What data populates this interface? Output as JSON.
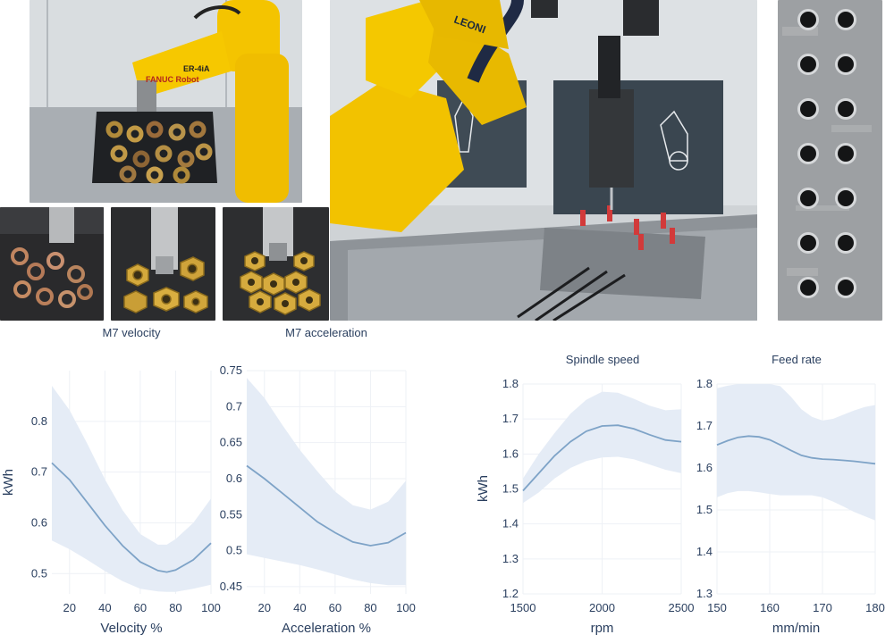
{
  "photos": {
    "robot_pick_and_place": {
      "brand_text": "FANUC Robot",
      "model_text": "ER-4iA"
    },
    "pick_sequence": [
      "brass-rings",
      "brass-nuts-mixed",
      "brass-nuts-hex"
    ],
    "drilling_cell": {
      "brand_text": "LEONI"
    },
    "drilled_plate": {
      "hole_count": 14
    }
  },
  "colors": {
    "line": "#7ea3c7",
    "band": "#e4ebf6",
    "grid": "#eef1f6",
    "text": "#2a3f5f"
  },
  "chart_data": [
    {
      "type": "line",
      "title": "M7 velocity",
      "xlabel": "Velocity %",
      "ylabel": "kWh",
      "xlim": [
        10,
        100
      ],
      "ylim": [
        0.46,
        0.9
      ],
      "xticks": [
        20,
        40,
        60,
        80,
        100
      ],
      "yticks": [
        0.5,
        0.6,
        0.7,
        0.8
      ],
      "x": [
        10,
        20,
        30,
        40,
        50,
        60,
        70,
        75,
        80,
        90,
        100
      ],
      "y": [
        0.718,
        0.685,
        0.64,
        0.595,
        0.555,
        0.523,
        0.506,
        0.503,
        0.507,
        0.527,
        0.56
      ],
      "y_lower": [
        0.565,
        0.548,
        0.527,
        0.505,
        0.485,
        0.47,
        0.465,
        0.464,
        0.464,
        0.47,
        0.478
      ],
      "y_upper": [
        0.87,
        0.822,
        0.756,
        0.686,
        0.625,
        0.578,
        0.557,
        0.557,
        0.568,
        0.6,
        0.648
      ]
    },
    {
      "type": "line",
      "title": "M7 acceleration",
      "xlabel": "Acceleration %",
      "ylabel": "",
      "xlim": [
        10,
        100
      ],
      "ylim": [
        0.44,
        0.75
      ],
      "xticks": [
        20,
        40,
        60,
        80,
        100
      ],
      "yticks": [
        0.45,
        0.5,
        0.55,
        0.6,
        0.65,
        0.7,
        0.75
      ],
      "x": [
        10,
        20,
        30,
        40,
        50,
        60,
        70,
        80,
        90,
        100
      ],
      "y": [
        0.618,
        0.6,
        0.58,
        0.56,
        0.54,
        0.525,
        0.512,
        0.507,
        0.511,
        0.525
      ],
      "y_lower": [
        0.495,
        0.49,
        0.485,
        0.48,
        0.474,
        0.467,
        0.46,
        0.455,
        0.452,
        0.452
      ],
      "y_upper": [
        0.74,
        0.712,
        0.675,
        0.64,
        0.61,
        0.582,
        0.563,
        0.557,
        0.568,
        0.597
      ]
    },
    {
      "type": "line",
      "title": "Spindle speed",
      "xlabel": "rpm",
      "ylabel": "kWh",
      "xlim": [
        1500,
        2500
      ],
      "ylim": [
        1.2,
        1.8
      ],
      "xticks": [
        1500,
        2000,
        2500
      ],
      "yticks": [
        1.2,
        1.3,
        1.4,
        1.5,
        1.6,
        1.7,
        1.8
      ],
      "x": [
        1500,
        1600,
        1700,
        1800,
        1900,
        2000,
        2100,
        2200,
        2300,
        2400,
        2500
      ],
      "y": [
        1.495,
        1.545,
        1.595,
        1.635,
        1.665,
        1.68,
        1.682,
        1.672,
        1.655,
        1.64,
        1.635
      ],
      "y_lower": [
        1.46,
        1.49,
        1.53,
        1.56,
        1.58,
        1.59,
        1.592,
        1.585,
        1.57,
        1.555,
        1.545
      ],
      "y_upper": [
        1.53,
        1.6,
        1.66,
        1.715,
        1.755,
        1.778,
        1.775,
        1.758,
        1.738,
        1.725,
        1.728
      ]
    },
    {
      "type": "line",
      "title": "Feed rate",
      "xlabel": "mm/min",
      "ylabel": "",
      "xlim": [
        150,
        180
      ],
      "ylim": [
        1.3,
        1.8
      ],
      "xticks": [
        150,
        160,
        170,
        180
      ],
      "yticks": [
        1.3,
        1.4,
        1.5,
        1.6,
        1.7,
        1.8
      ],
      "x": [
        150,
        152,
        154,
        156,
        158,
        160,
        162,
        164,
        166,
        168,
        170,
        172,
        174,
        176,
        178,
        180
      ],
      "y": [
        1.655,
        1.665,
        1.673,
        1.676,
        1.674,
        1.667,
        1.655,
        1.642,
        1.63,
        1.624,
        1.621,
        1.62,
        1.618,
        1.616,
        1.613,
        1.61
      ],
      "y_lower": [
        1.53,
        1.54,
        1.545,
        1.545,
        1.542,
        1.538,
        1.535,
        1.535,
        1.535,
        1.535,
        1.53,
        1.52,
        1.508,
        1.495,
        1.485,
        1.475
      ],
      "y_upper": [
        1.79,
        1.796,
        1.8,
        1.8,
        1.8,
        1.8,
        1.795,
        1.77,
        1.74,
        1.722,
        1.713,
        1.717,
        1.727,
        1.737,
        1.745,
        1.75
      ]
    }
  ]
}
